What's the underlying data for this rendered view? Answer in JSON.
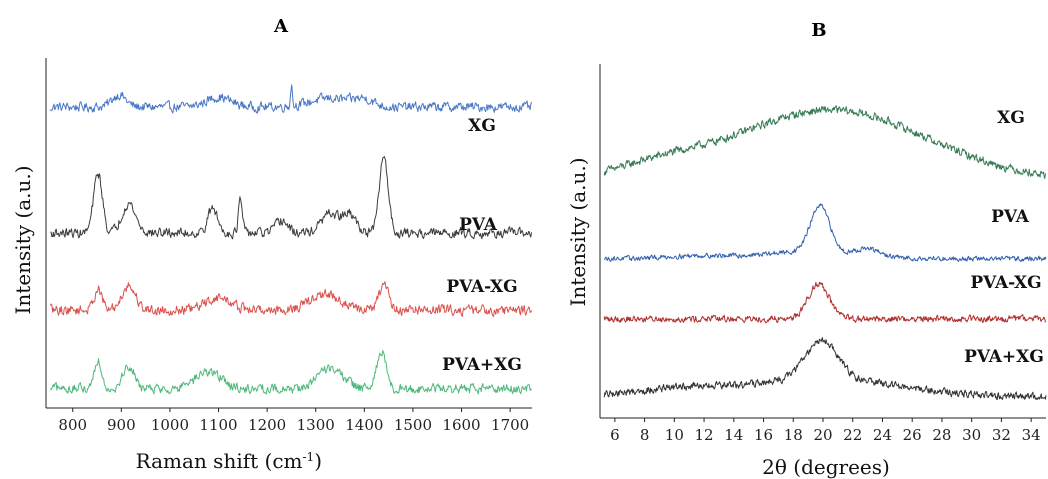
{
  "chart_data": [
    {
      "panel": "A",
      "type": "line",
      "xlabel": "Raman shift (cm",
      "xlabel_sup": "-1",
      "xlabel_close": ")",
      "ylabel": "Intensity (a.u.)",
      "xlim": [
        745,
        1745
      ],
      "ticks": [
        "800",
        "900",
        "1000",
        "1100",
        "1200",
        "1300",
        "1400",
        "1500",
        "1600",
        "1700"
      ],
      "tick_values": [
        800,
        900,
        1000,
        1100,
        1200,
        1300,
        1400,
        1500,
        1600,
        1700
      ],
      "series": [
        {
          "name": "XG",
          "color": "#4a78c6",
          "offset": 0.86,
          "peaks": [
            [
              895,
              0.035,
              14
            ],
            [
              1100,
              0.028,
              25
            ],
            [
              1250,
              0.06,
              2
            ],
            [
              1330,
              0.025,
              40
            ],
            [
              1400,
              0.02,
              20
            ]
          ],
          "noise": 0.012,
          "baseline": 0.0
        },
        {
          "name": "PVA",
          "color": "#3c3c3c",
          "offset": 0.5,
          "peaks": [
            [
              852,
              0.17,
              9
            ],
            [
              915,
              0.085,
              14
            ],
            [
              1088,
              0.07,
              10
            ],
            [
              1145,
              0.095,
              4
            ],
            [
              1230,
              0.035,
              12
            ],
            [
              1330,
              0.055,
              18
            ],
            [
              1370,
              0.05,
              14
            ],
            [
              1440,
              0.22,
              9
            ]
          ],
          "noise": 0.012,
          "baseline": 0.0
        },
        {
          "name": "PVA-XG",
          "color": "#d9534f",
          "offset": 0.28,
          "peaks": [
            [
              852,
              0.06,
              8
            ],
            [
              915,
              0.07,
              14
            ],
            [
              1100,
              0.035,
              25
            ],
            [
              1320,
              0.045,
              30
            ],
            [
              1440,
              0.07,
              10
            ]
          ],
          "noise": 0.013,
          "baseline": 0.0
        },
        {
          "name": "PVA+XG",
          "color": "#4fb87a",
          "offset": 0.055,
          "peaks": [
            [
              852,
              0.08,
              8
            ],
            [
              915,
              0.065,
              12
            ],
            [
              1080,
              0.05,
              25
            ],
            [
              1330,
              0.06,
              25
            ],
            [
              1435,
              0.11,
              9
            ]
          ],
          "noise": 0.012,
          "baseline": 0.0
        }
      ]
    },
    {
      "panel": "B",
      "type": "line",
      "xlabel": "2θ (degrees)",
      "ylabel": "Intensity (a.u.)",
      "xlim": [
        5,
        35
      ],
      "ticks": [
        "6",
        "8",
        "10",
        "12",
        "14",
        "16",
        "18",
        "20",
        "22",
        "24",
        "26",
        "28",
        "30",
        "32",
        "34"
      ],
      "tick_values": [
        6,
        8,
        10,
        12,
        14,
        16,
        18,
        20,
        22,
        24,
        26,
        28,
        30,
        32,
        34
      ],
      "series": [
        {
          "name": "XG",
          "color": "#3a7d55",
          "offset": 0.67,
          "peaks": [
            [
              20.5,
              0.2,
              6.5
            ],
            [
              9,
              0.03,
              3
            ]
          ],
          "noise": 0.01,
          "baseline": 0.0
        },
        {
          "name": "PVA",
          "color": "#3460b0",
          "offset": 0.45,
          "peaks": [
            [
              19.8,
              0.13,
              0.65
            ],
            [
              19,
              0.02,
              3
            ],
            [
              23.0,
              0.02,
              0.8
            ],
            [
              11.5,
              0.008,
              2
            ]
          ],
          "noise": 0.006,
          "baseline": 0.0
        },
        {
          "name": "PVA-XG",
          "color": "#b0302d",
          "offset": 0.28,
          "peaks": [
            [
              19.7,
              0.1,
              0.7
            ]
          ],
          "noise": 0.008,
          "baseline": 0.0
        },
        {
          "name": "PVA+XG",
          "color": "#333333",
          "offset": 0.06,
          "peaks": [
            [
              19.9,
              0.11,
              1.1
            ],
            [
              20,
              0.05,
              5
            ],
            [
              10,
              0.02,
              3
            ]
          ],
          "noise": 0.009,
          "baseline": 0.0
        }
      ]
    }
  ],
  "labels": {
    "panel_a": "A",
    "panel_b": "B",
    "a_xg": "XG",
    "a_pva": "PVA",
    "a_pvaxg_dash": "PVA-XG",
    "a_pvaxg_plus": "PVA+XG",
    "b_xg": "XG",
    "b_pva": "PVA",
    "b_pvaxg_dash": "PVA-XG",
    "b_pvaxg_plus": "PVA+XG"
  }
}
